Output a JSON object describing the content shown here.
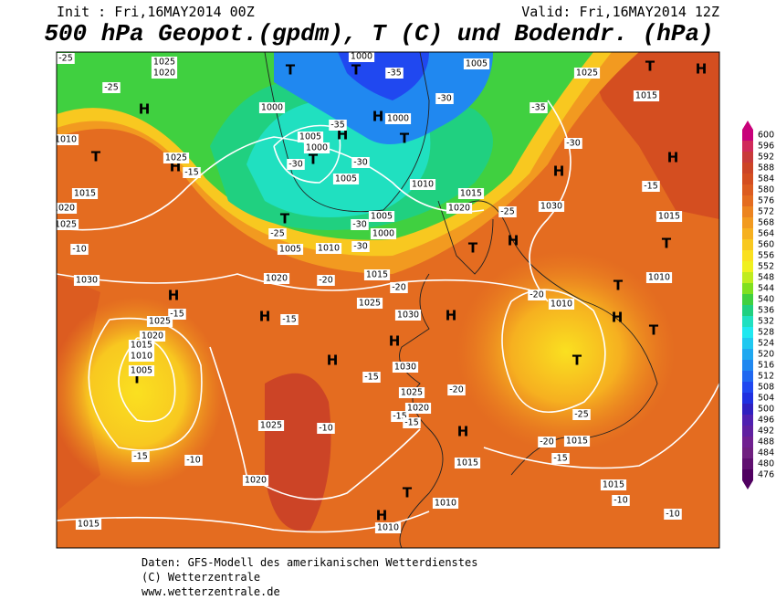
{
  "header": {
    "init": "Init : Fri,16MAY2014 00Z",
    "valid": "Valid: Fri,16MAY2014 12Z",
    "title": "500 hPa Geopot.(gpdm), T (C) und Bodendr. (hPa)"
  },
  "colorbar": {
    "levels": [
      600,
      596,
      592,
      588,
      584,
      580,
      576,
      572,
      568,
      564,
      560,
      556,
      552,
      548,
      544,
      540,
      536,
      532,
      528,
      524,
      520,
      516,
      512,
      508,
      504,
      500,
      496,
      492,
      488,
      484,
      480,
      476
    ],
    "colors": [
      "#c8007a",
      "#d02a5a",
      "#c83a3a",
      "#cc4426",
      "#d44e20",
      "#dc5c20",
      "#e46c20",
      "#ec8420",
      "#f29a20",
      "#f6b020",
      "#f8c820",
      "#fae020",
      "#f0f020",
      "#c0ec20",
      "#80e020",
      "#40d040",
      "#20d080",
      "#20e0c0",
      "#20e8f0",
      "#20c8f0",
      "#20a8f0",
      "#2088f0",
      "#2068f0",
      "#2048f0",
      "#2030e0",
      "#3020c0",
      "#5020b0",
      "#6020a0",
      "#702090",
      "#702080",
      "#601070",
      "#500060"
    ]
  },
  "map_labels": [
    "T",
    "T",
    "H",
    "T",
    "H",
    "H",
    "H",
    "T",
    "T",
    "T",
    "H",
    "H",
    "T",
    "H",
    "T",
    "H",
    "T",
    "T",
    "H",
    "H",
    "H",
    "H",
    "T",
    "H",
    "H",
    "T",
    "T",
    "H",
    "T",
    "H",
    "1020",
    "1025",
    "-25",
    "-25",
    "1000",
    "1005",
    "1025",
    "-35",
    "1015",
    "-30",
    "-35",
    "1000",
    "1005",
    "1000",
    "-30",
    "1000",
    "-35",
    "-30",
    "1005",
    "1010",
    "1015",
    "1020",
    "-30",
    "1030",
    "-25",
    "1005",
    "-30",
    "1000",
    "-25",
    "1005",
    "1010",
    "-30",
    "1015",
    "1020",
    "-20",
    "1025",
    "-20",
    "1030",
    "-20",
    "1010",
    "1010",
    "1015",
    "-15",
    "1010",
    "1025",
    "-15",
    "1015",
    "1020",
    "1025",
    "-10",
    "1030",
    "-15",
    "1025",
    "1020",
    "1015",
    "1010",
    "1005",
    "-15",
    "1030",
    "-15",
    "1025",
    "1020",
    "-20",
    "-15",
    "-15",
    "1025",
    "-10",
    "-25",
    "1015",
    "-20",
    "-15",
    "1015",
    "-15",
    "-10",
    "1020",
    "1015",
    "-10",
    "1010",
    "-10",
    "1015",
    "1010"
  ],
  "footer": [
    "Daten: GFS-Modell des amerikanischen Wetterdienstes",
    "(C) Wetterzentrale",
    "www.wetterzentrale.de"
  ]
}
